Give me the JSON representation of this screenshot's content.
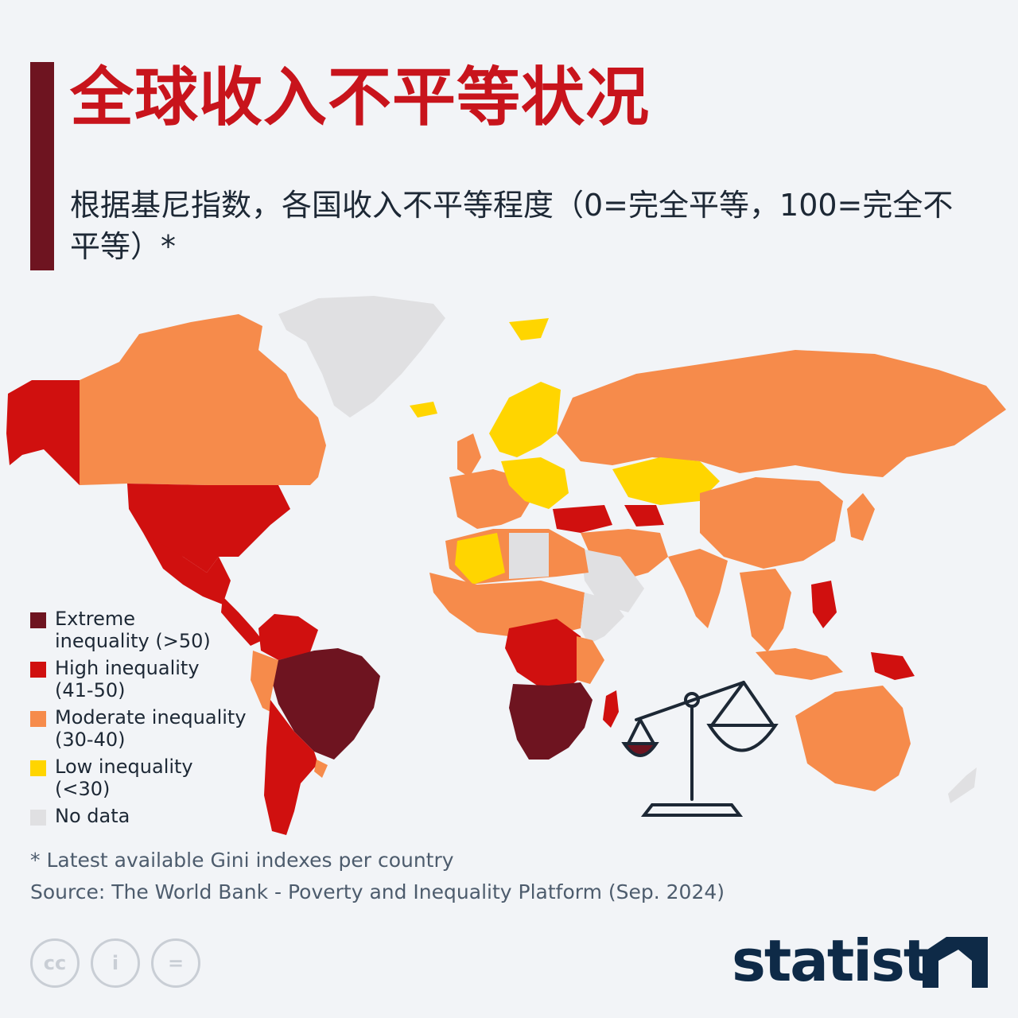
{
  "header": {
    "title": "全球收入不平等状况",
    "subtitle": "根据基尼指数，各国收入不平等程度（0=完全平等，100=完全不平等）*"
  },
  "legend": [
    {
      "label": "Extreme",
      "range": "inequality (>50)",
      "color": "#6e1420"
    },
    {
      "label": "High inequality",
      "range": "(41-50)",
      "color": "#d0100f"
    },
    {
      "label": "Moderate inequality",
      "range": "(30-40)",
      "color": "#f68b4b"
    },
    {
      "label": "Low inequality",
      "range": "(<30)",
      "color": "#ffd500"
    },
    {
      "label": "No data",
      "range": "",
      "color": "#e0e0e2"
    }
  ],
  "footer": {
    "note": "* Latest available Gini indexes per country",
    "source": "Source: The World Bank - Poverty and Inequality Platform (Sep. 2024)",
    "brand": "statista",
    "cc_icons": [
      {
        "name": "cc-icon",
        "glyph": "cc"
      },
      {
        "name": "attribution-icon",
        "glyph": "i"
      },
      {
        "name": "no-derivatives-icon",
        "glyph": "="
      }
    ]
  },
  "map": {
    "decor_icon": "balance-scale-icon",
    "colors": {
      "extreme": "#6e1420",
      "high": "#d0100f",
      "moderate": "#f68b4b",
      "low": "#ffd500",
      "no_data": "#e0e0e2"
    }
  }
}
